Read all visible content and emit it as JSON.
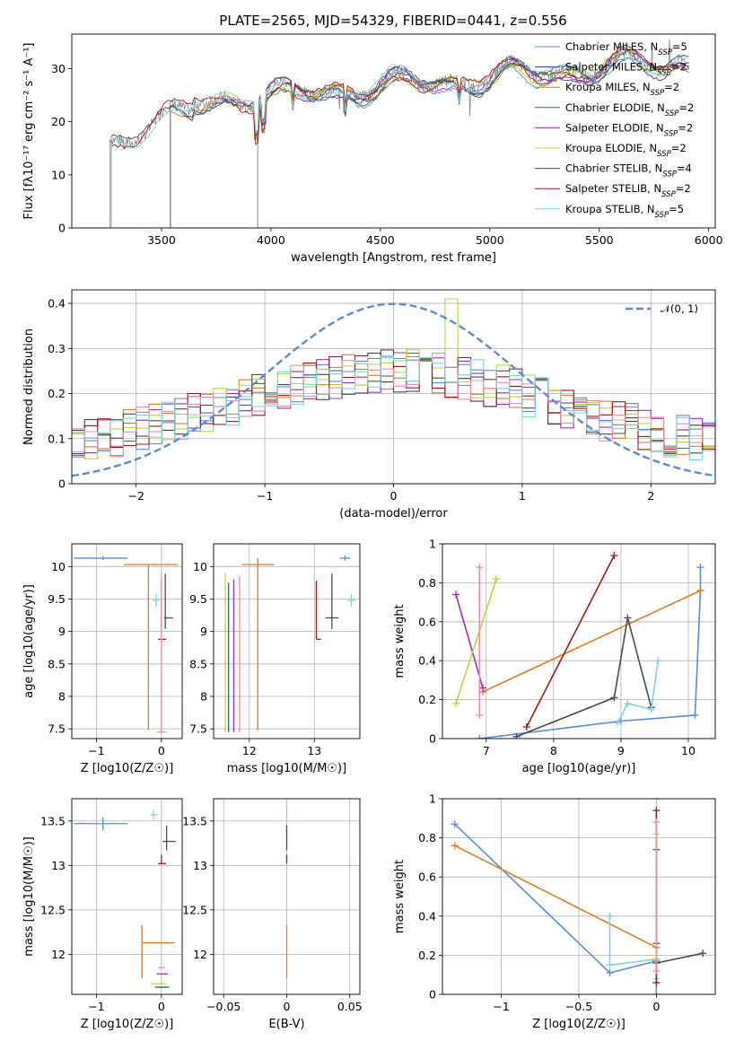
{
  "figure": {
    "title": "PLATE=2565, MJD=54329, FIBERID=0441, z=0.556"
  },
  "chart_data": [
    {
      "id": "spectrum",
      "type": "line",
      "xlabel": "wavelength [Angstrom, rest frame]",
      "ylabel": "Flux [fλ10⁻¹⁷ erg cm⁻² s⁻¹ A⁻¹]",
      "xlim": [
        3090,
        6030
      ],
      "ylim": [
        0,
        36.5
      ],
      "xticks": [
        3500,
        4000,
        4500,
        5000,
        5500,
        6000
      ],
      "yticks": [
        0,
        10,
        20,
        30
      ],
      "grid": false,
      "legend_position": "top-right",
      "observed_start": 3265,
      "series": [
        {
          "name": "Chabrier MILES, N_SSP=5",
          "color": "#5b8bd6",
          "start": 3540
        },
        {
          "name": "Salpeter MILES, N_SSP=2",
          "color": "#3a3ab8",
          "start": 3540
        },
        {
          "name": "Kroupa MILES, N_SSP=2",
          "color": "#e07b21",
          "start": 3540
        },
        {
          "name": "Chabrier ELODIE, N_SSP=2",
          "color": "#2c6e4f",
          "start": 3940
        },
        {
          "name": "Salpeter ELODIE, N_SSP=2",
          "color": "#9b30b8",
          "start": 3940
        },
        {
          "name": "Kroupa ELODIE, N_SSP=2",
          "color": "#bcd63a",
          "start": 3940
        },
        {
          "name": "Chabrier STELIB, N_SSP=4",
          "color": "#4a4a4a",
          "start": 3270
        },
        {
          "name": "Salpeter STELIB, N_SSP=2",
          "color": "#a01818",
          "start": 3270
        },
        {
          "name": "Kroupa STELIB, N_SSP=5",
          "color": "#7fd3e0",
          "start": 3270
        }
      ]
    },
    {
      "id": "residuals",
      "type": "histogram",
      "xlabel": "(data-model)/error",
      "ylabel": "Normed distribution",
      "xlim": [
        -2.5,
        2.5
      ],
      "ylim": [
        0,
        0.43
      ],
      "xticks": [
        -2,
        -1,
        0,
        1,
        2
      ],
      "yticks": [
        0.0,
        0.1,
        0.2,
        0.3,
        0.4
      ],
      "grid": true,
      "legend_position": "top-right",
      "reference_curve": {
        "name": "N(0,1)",
        "color": "#5b8bd6"
      },
      "bin_width": 0.1
    },
    {
      "id": "age_vs_Z",
      "type": "errorbar",
      "xlabel": "Z [log10(Z/Z☉)]",
      "ylabel": "age  [log10(age/yr)]",
      "xlim": [
        -1.38,
        0.32
      ],
      "ylim": [
        7.35,
        10.35
      ],
      "xticks": [
        -1,
        0
      ],
      "yticks": [
        7.5,
        8.0,
        8.5,
        9.0,
        9.5,
        10.0
      ],
      "grid": true,
      "points": [
        {
          "color": "#5b8bd6",
          "x": -0.9,
          "y": 10.13,
          "xerr": [
            0.45,
            0.38
          ],
          "yerr": [
            0.03,
            0.03
          ]
        },
        {
          "color": "#e07b21",
          "x": -0.2,
          "y": 10.03,
          "xerr": [
            0.38,
            0.45
          ],
          "yerr": [
            2.55,
            0.0
          ]
        },
        {
          "color": "#7fd3e0",
          "x": -0.08,
          "y": 9.48,
          "xerr": [
            0.06,
            0.06
          ],
          "yerr": [
            0.1,
            0.1
          ]
        },
        {
          "color": "#4a4a4a",
          "x": 0.06,
          "y": 9.21,
          "xerr": [
            0.02,
            0.12
          ],
          "yerr": [
            0.17,
            0.68
          ]
        },
        {
          "color": "#a01818",
          "x": 0.0,
          "y": 8.88,
          "xerr": [
            0.05,
            0.07
          ],
          "yerr": [
            0.0,
            0.9
          ]
        },
        {
          "color": "#bcd63a",
          "x": 0.0,
          "y": 7.45,
          "xerr": [
            0.07,
            0.08
          ],
          "yerr": [
            0.0,
            2.45
          ]
        },
        {
          "color": "#f08ab4",
          "x": 0.0,
          "y": 7.45,
          "xerr": [
            0.05,
            0.05
          ],
          "yerr": [
            0.0,
            2.4
          ]
        }
      ]
    },
    {
      "id": "age_vs_mass",
      "type": "errorbar",
      "xlabel": "mass [log10(M/M☉)]",
      "ylabel": "",
      "xlim": [
        11.45,
        13.7
      ],
      "ylim": [
        7.35,
        10.35
      ],
      "xticks": [
        12,
        13
      ],
      "yticks": [
        7.5,
        8.0,
        8.5,
        9.0,
        9.5,
        10.0
      ],
      "grid": true,
      "points": [
        {
          "color": "#5b8bd6",
          "x": 13.47,
          "y": 10.13,
          "xerr": [
            0.08,
            0.08
          ],
          "yerr": [
            0.04,
            0.04
          ]
        },
        {
          "color": "#e07b21",
          "x": 12.13,
          "y": 10.03,
          "xerr": [
            0.25,
            0.25
          ],
          "yerr": [
            2.55,
            0.1
          ]
        },
        {
          "color": "#7fd3e0",
          "x": 13.57,
          "y": 9.48,
          "xerr": [
            0.06,
            0.06
          ],
          "yerr": [
            0.1,
            0.1
          ]
        },
        {
          "color": "#4a4a4a",
          "x": 13.27,
          "y": 9.21,
          "xerr": [
            0.1,
            0.1
          ],
          "yerr": [
            0.17,
            0.68
          ]
        },
        {
          "color": "#a01818",
          "x": 13.03,
          "y": 8.88,
          "xerr": [
            0.0,
            0.07
          ],
          "yerr": [
            0.0,
            0.9
          ]
        },
        {
          "color": "#bcd63a",
          "x": 11.63,
          "y": 7.45,
          "xerr": [
            0.0,
            0.0
          ],
          "yerr": [
            0.0,
            2.45
          ]
        },
        {
          "color": "#f08ab4",
          "x": 11.85,
          "y": 7.45,
          "xerr": [
            0.0,
            0.0
          ],
          "yerr": [
            0.0,
            2.4
          ]
        },
        {
          "color": "#9b30b8",
          "x": 11.76,
          "y": 7.45,
          "xerr": [
            0.0,
            0.0
          ],
          "yerr": [
            0.0,
            2.35
          ]
        },
        {
          "color": "#2c6e4f",
          "x": 11.68,
          "y": 7.45,
          "xerr": [
            0.0,
            0.0
          ],
          "yerr": [
            0.0,
            2.3
          ]
        }
      ]
    },
    {
      "id": "weight_vs_age",
      "type": "line",
      "xlabel": "age  [log10(age/yr)]",
      "ylabel": "mass weight",
      "xlim": [
        6.35,
        10.4
      ],
      "ylim": [
        0,
        1.0
      ],
      "xticks": [
        7,
        8,
        9,
        10
      ],
      "yticks": [
        0.0,
        0.2,
        0.4,
        0.6,
        0.8,
        1.0
      ],
      "grid": true,
      "series": [
        {
          "color": "#5b8bd6",
          "x": [
            6.9,
            9.0,
            10.1,
            10.18,
            10.18
          ],
          "y": [
            0.0,
            0.09,
            0.12,
            0.76,
            0.88
          ]
        },
        {
          "color": "#e07b21",
          "x": [
            6.95,
            10.18
          ],
          "y": [
            0.24,
            0.76
          ]
        },
        {
          "color": "#4a4a4a",
          "x": [
            7.45,
            8.9,
            9.1,
            9.45
          ],
          "y": [
            0.01,
            0.21,
            0.62,
            0.16
          ]
        },
        {
          "color": "#a01818",
          "x": [
            7.6,
            8.9
          ],
          "y": [
            0.06,
            0.94
          ]
        },
        {
          "color": "#9b30b8",
          "x": [
            6.55,
            6.95
          ],
          "y": [
            0.74,
            0.26
          ]
        },
        {
          "color": "#bcd63a",
          "x": [
            6.55,
            7.15
          ],
          "y": [
            0.18,
            0.82
          ]
        },
        {
          "color": "#f08ab4",
          "x": [
            6.9,
            6.9
          ],
          "y": [
            0.12,
            0.88
          ]
        },
        {
          "color": "#7fd3e0",
          "x": [
            8.95,
            9.1,
            9.45,
            9.55
          ],
          "y": [
            0.08,
            0.18,
            0.15,
            0.4
          ]
        }
      ]
    },
    {
      "id": "mass_vs_Z",
      "type": "errorbar",
      "xlabel": "Z [log10(Z/Z☉)]",
      "ylabel": "mass [log10(M/M☉)]",
      "xlim": [
        -1.38,
        0.32
      ],
      "ylim": [
        11.55,
        13.75
      ],
      "xticks": [
        -1,
        0
      ],
      "yticks": [
        12.0,
        12.5,
        13.0,
        13.5
      ],
      "grid": true,
      "points": [
        {
          "color": "#5b8bd6",
          "x": -0.9,
          "y": 13.47,
          "xerr": [
            0.45,
            0.38
          ],
          "yerr": [
            0.07,
            0.07
          ]
        },
        {
          "color": "#7fd3e0",
          "x": -0.12,
          "y": 13.57,
          "xerr": [
            0.05,
            0.05
          ],
          "yerr": [
            0.05,
            0.05
          ]
        },
        {
          "color": "#4a4a4a",
          "x": 0.08,
          "y": 13.27,
          "xerr": [
            0.06,
            0.14
          ],
          "yerr": [
            0.1,
            0.18
          ]
        },
        {
          "color": "#a01818",
          "x": 0.0,
          "y": 13.02,
          "xerr": [
            0.05,
            0.07
          ],
          "yerr": [
            0.0,
            0.1
          ]
        },
        {
          "color": "#e07b21",
          "x": -0.3,
          "y": 12.13,
          "xerr": [
            0.0,
            0.5
          ],
          "yerr": [
            0.4,
            0.2
          ]
        },
        {
          "color": "#f08ab4",
          "x": 0.0,
          "y": 11.85,
          "xerr": [
            0.05,
            0.05
          ],
          "yerr": [
            0.0,
            0.0
          ]
        },
        {
          "color": "#9b30b8",
          "x": 0.0,
          "y": 11.78,
          "xerr": [
            0.07,
            0.1
          ],
          "yerr": [
            0.0,
            0.0
          ]
        },
        {
          "color": "#bcd63a",
          "x": -0.02,
          "y": 11.67,
          "xerr": [
            0.14,
            0.1
          ],
          "yerr": [
            0.0,
            0.0
          ]
        },
        {
          "color": "#2c6e4f",
          "x": 0.0,
          "y": 11.63,
          "xerr": [
            0.1,
            0.12
          ],
          "yerr": [
            0.0,
            0.0
          ]
        }
      ]
    },
    {
      "id": "mass_vs_ebv",
      "type": "errorbar",
      "xlabel": "E(B-V)",
      "ylabel": "",
      "xlim": [
        -0.058,
        0.058
      ],
      "ylim": [
        11.55,
        13.75
      ],
      "xticks": [
        -0.05,
        0.0,
        0.05
      ],
      "yticks": [
        12.0,
        12.5,
        13.0,
        13.5
      ],
      "grid": true,
      "points": [
        {
          "color": "#7fd3e0",
          "x": 0.0,
          "y": 13.57,
          "xerr": [
            0,
            0
          ],
          "yerr": [
            0.05,
            0.1
          ]
        },
        {
          "color": "#4a4a4a",
          "x": 0.0,
          "y": 13.27,
          "xerr": [
            0,
            0
          ],
          "yerr": [
            0.1,
            0.18
          ]
        },
        {
          "color": "#a01818",
          "x": 0.0,
          "y": 13.02,
          "xerr": [
            0,
            0
          ],
          "yerr": [
            0.0,
            0.1
          ]
        },
        {
          "color": "#e07b21",
          "x": 0.0,
          "y": 12.13,
          "xerr": [
            0,
            0
          ],
          "yerr": [
            0.4,
            0.2
          ]
        }
      ]
    },
    {
      "id": "weight_vs_Z",
      "type": "line",
      "xlabel": "Z [log10(Z/Z☉)]",
      "ylabel": "mass weight",
      "xlim": [
        -1.38,
        0.38
      ],
      "ylim": [
        0,
        1.0
      ],
      "xticks": [
        -1.0,
        -0.5,
        0.0
      ],
      "yticks": [
        0.0,
        0.2,
        0.4,
        0.6,
        0.8,
        1.0
      ],
      "grid": true,
      "series": [
        {
          "color": "#5b8bd6",
          "x": [
            -1.3,
            -0.3,
            0.0,
            0.0
          ],
          "y": [
            0.87,
            0.11,
            0.17,
            0.0
          ]
        },
        {
          "color": "#e07b21",
          "x": [
            -1.3,
            0.0
          ],
          "y": [
            0.76,
            0.24
          ]
        },
        {
          "color": "#4a4a4a",
          "x": [
            0.0,
            0.3
          ],
          "y": [
            0.16,
            0.21
          ]
        },
        {
          "color": "#7fd3e0",
          "x": [
            -0.3,
            -0.3,
            0.0,
            0.0
          ],
          "y": [
            0.4,
            0.15,
            0.18,
            0.08
          ]
        },
        {
          "color": "#a01818",
          "x": [
            0.0,
            0.0
          ],
          "y": [
            0.06,
            0.94
          ]
        },
        {
          "color": "#9b30b8",
          "x": [
            0.0,
            0.0
          ],
          "y": [
            0.26,
            0.74
          ]
        },
        {
          "color": "#bcd63a",
          "x": [
            0.0,
            0.0
          ],
          "y": [
            0.18,
            0.82
          ]
        },
        {
          "color": "#f08ab4",
          "x": [
            0.0,
            0.0
          ],
          "y": [
            0.12,
            0.88
          ]
        }
      ]
    }
  ]
}
